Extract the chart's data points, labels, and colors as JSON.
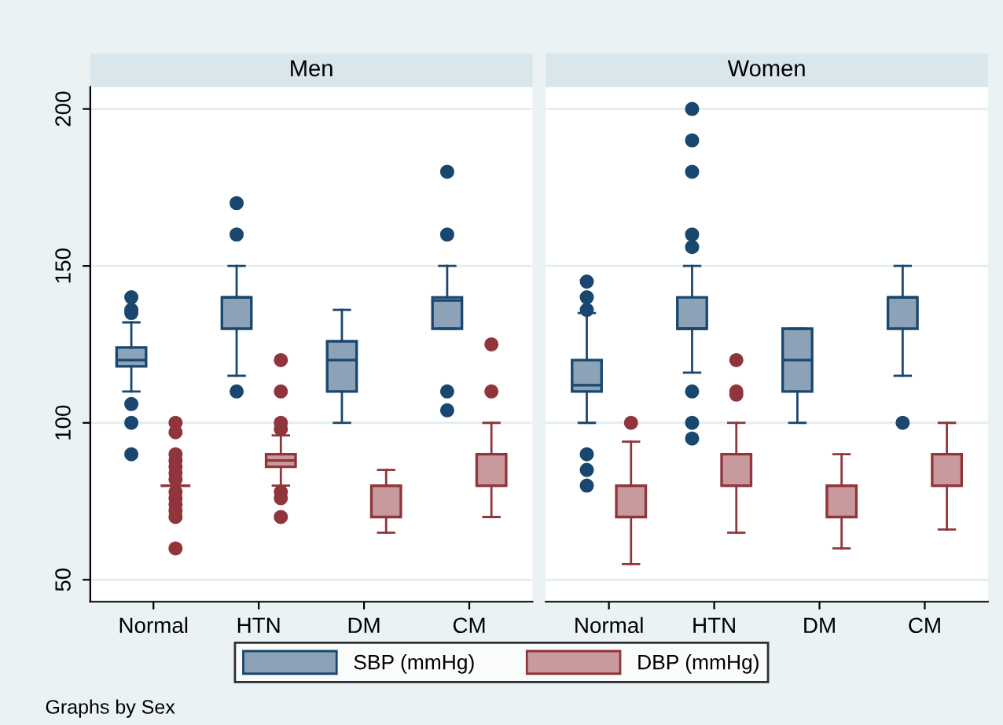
{
  "chart_data": [
    {
      "type": "box",
      "title": "Men",
      "categories": [
        "Normal",
        "HTN",
        "DM",
        "CM"
      ],
      "ylim": [
        43,
        207
      ],
      "yticks": [
        50,
        100,
        150,
        200
      ],
      "grid": "y",
      "legend": "bottom",
      "annotations": [
        "Graphs by Sex"
      ],
      "series": [
        {
          "name": "SBP (mmHg)",
          "color": "#1a476f",
          "boxes": [
            {
              "low": 110,
              "q1": 118,
              "median": 120,
              "q3": 124,
              "high": 132,
              "outliers": [
                140,
                136,
                135,
                106,
                100,
                90
              ]
            },
            {
              "low": 115,
              "q1": 130,
              "median": 140,
              "q3": 140,
              "high": 150,
              "outliers": [
                170,
                160,
                110
              ]
            },
            {
              "low": 100,
              "q1": 110,
              "median": 120,
              "q3": 126,
              "high": 136
            },
            {
              "low": 130,
              "q1": 130,
              "median": 139,
              "q3": 140,
              "high": 150,
              "outliers": [
                180,
                160,
                110,
                104
              ]
            }
          ]
        },
        {
          "name": "DBP (mmHg)",
          "color": "#90353b",
          "boxes": [
            {
              "low": 80,
              "q1": 80,
              "median": 80,
              "q3": 80,
              "high": 80,
              "outliers": [
                100,
                97,
                90,
                88,
                86,
                84,
                82,
                78,
                76,
                74,
                72,
                70,
                60
              ]
            },
            {
              "low": 80,
              "q1": 86,
              "median": 88,
              "q3": 90,
              "high": 96,
              "outliers": [
                120,
                110,
                100,
                98,
                78,
                76,
                70
              ]
            },
            {
              "low": 65,
              "q1": 70,
              "median": 80,
              "q3": 80,
              "high": 85
            },
            {
              "low": 70,
              "q1": 80,
              "median": 80,
              "q3": 90,
              "high": 100,
              "outliers": [
                125,
                110
              ]
            }
          ]
        }
      ]
    },
    {
      "type": "box",
      "title": "Women",
      "categories": [
        "Normal",
        "HTN",
        "DM",
        "CM"
      ],
      "ylim": [
        43,
        207
      ],
      "yticks": [
        50,
        100,
        150,
        200
      ],
      "grid": "y",
      "tick_labels": "x",
      "series": [
        {
          "color": "#1a476f",
          "boxes": [
            {
              "low": 100,
              "q1": 110,
              "median": 112,
              "q3": 120,
              "high": 135,
              "outliers": [
                145,
                140,
                136,
                90,
                85,
                80
              ]
            },
            {
              "low": 116,
              "q1": 130,
              "median": 130,
              "q3": 140,
              "high": 150,
              "outliers": [
                200,
                190,
                180,
                160,
                156,
                110,
                100,
                95
              ]
            },
            {
              "low": 100,
              "q1": 110,
              "median": 120,
              "q3": 130,
              "high": 130
            },
            {
              "low": 115,
              "q1": 130,
              "median": 140,
              "q3": 140,
              "high": 150,
              "outliers": [
                100
              ]
            }
          ]
        },
        {
          "color": "#90353b",
          "boxes": [
            {
              "low": 55,
              "q1": 70,
              "median": 80,
              "q3": 80,
              "high": 94,
              "outliers": [
                100
              ]
            },
            {
              "low": 65,
              "q1": 80,
              "median": 80,
              "q3": 90,
              "high": 100,
              "outliers": [
                120,
                110,
                109
              ]
            },
            {
              "low": 60,
              "q1": 70,
              "median": 80,
              "q3": 80,
              "high": 90
            },
            {
              "low": 66,
              "q1": 80,
              "median": 80,
              "q3": 90,
              "high": 100
            }
          ]
        }
      ]
    }
  ]
}
